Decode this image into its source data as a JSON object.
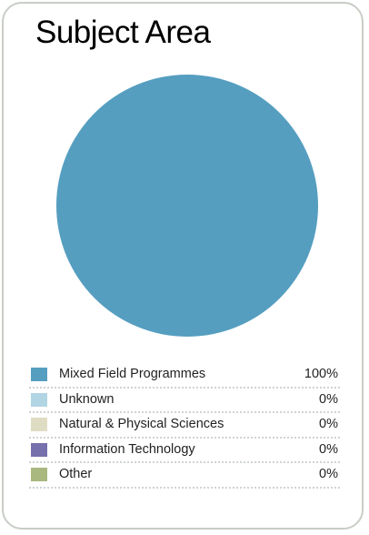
{
  "chart_data": {
    "type": "pie",
    "title": "Subject Area",
    "slices": [
      {
        "label": "Mixed Field Programmes",
        "value": 100,
        "display": "100%",
        "color": "#559ec0"
      },
      {
        "label": "Unknown",
        "value": 0,
        "display": "0%",
        "color": "#b1d5e3"
      },
      {
        "label": "Natural & Physical Sciences",
        "value": 0,
        "display": "0%",
        "color": "#dfdcc4"
      },
      {
        "label": "Information Technology",
        "value": 0,
        "display": "0%",
        "color": "#7670ac"
      },
      {
        "label": "Other",
        "value": 0,
        "display": "0%",
        "color": "#a9b87f"
      }
    ],
    "legend_position": "bottom"
  }
}
